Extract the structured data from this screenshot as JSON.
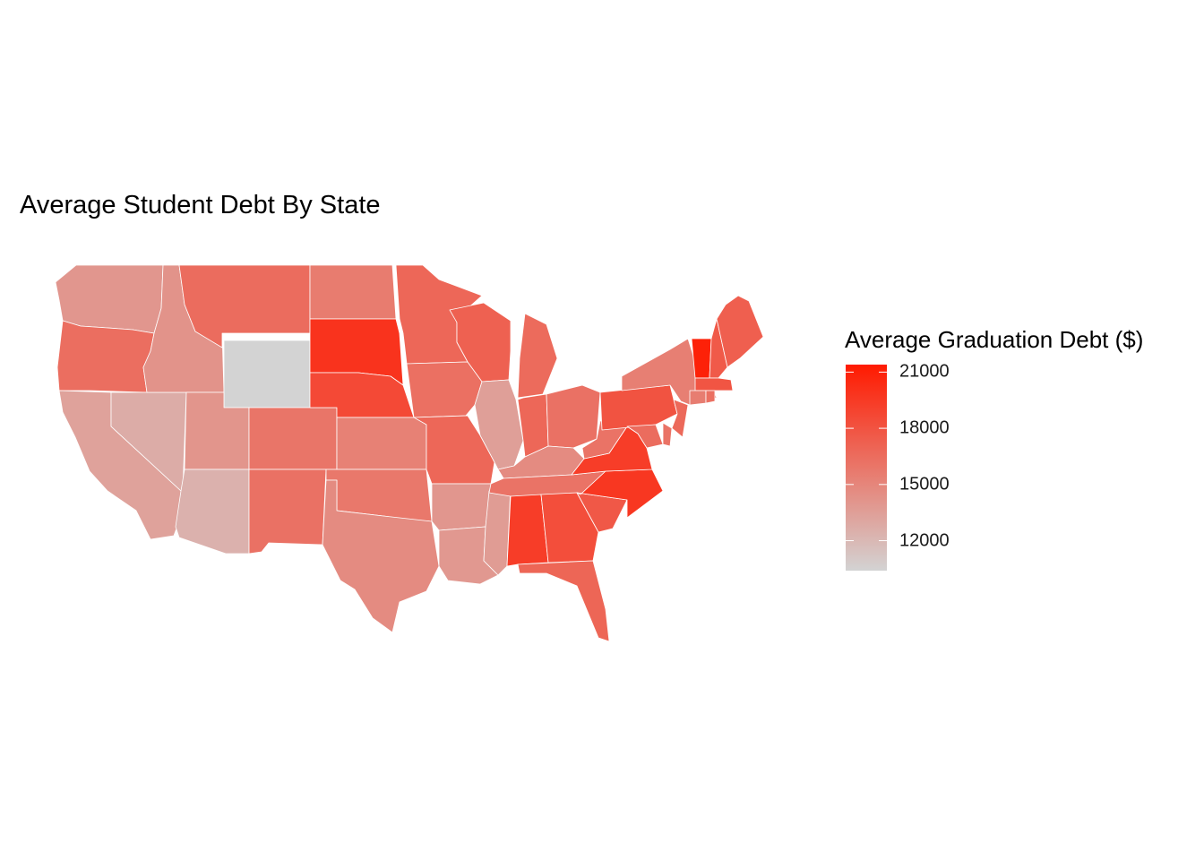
{
  "title": "Average Student Debt By State",
  "legend": {
    "title": "Average Graduation Debt ($)",
    "ticks": [
      {
        "label": "21000",
        "value": 21000
      },
      {
        "label": "18000",
        "value": 18000
      },
      {
        "label": "15000",
        "value": 15000
      },
      {
        "label": "12000",
        "value": 12000
      }
    ],
    "range": [
      10400,
      21400
    ],
    "low_color": "#d3d3d3",
    "high_color": "#ff1a00"
  },
  "chart_data": {
    "type": "choropleth",
    "value_name": "Average Graduation Debt ($)",
    "missing_color": "#d3d3d3",
    "states": [
      {
        "state": "Washington",
        "value": 14000
      },
      {
        "state": "Oregon",
        "value": 16400
      },
      {
        "state": "California",
        "value": 13300
      },
      {
        "state": "Nevada",
        "value": 12700
      },
      {
        "state": "Idaho",
        "value": 14200
      },
      {
        "state": "Montana",
        "value": 16500
      },
      {
        "state": "Wyoming",
        "value": null
      },
      {
        "state": "Utah",
        "value": 14100
      },
      {
        "state": "Arizona",
        "value": 12400
      },
      {
        "state": "Colorado",
        "value": 16000
      },
      {
        "state": "New Mexico",
        "value": 16200
      },
      {
        "state": "North Dakota",
        "value": 15600
      },
      {
        "state": "South Dakota",
        "value": 19900
      },
      {
        "state": "Nebraska",
        "value": 18600
      },
      {
        "state": "Kansas",
        "value": 15300
      },
      {
        "state": "Oklahoma",
        "value": 15800
      },
      {
        "state": "Texas",
        "value": 14700
      },
      {
        "state": "Minnesota",
        "value": 16800
      },
      {
        "state": "Iowa",
        "value": 16300
      },
      {
        "state": "Missouri",
        "value": 16800
      },
      {
        "state": "Arkansas",
        "value": 14000
      },
      {
        "state": "Louisiana",
        "value": 13900
      },
      {
        "state": "Wisconsin",
        "value": 17200
      },
      {
        "state": "Illinois",
        "value": 13500
      },
      {
        "state": "Mississippi",
        "value": 13700
      },
      {
        "state": "Michigan",
        "value": 16600
      },
      {
        "state": "Indiana",
        "value": 16800
      },
      {
        "state": "Ohio",
        "value": 16200
      },
      {
        "state": "Kentucky",
        "value": 14700
      },
      {
        "state": "Tennessee",
        "value": 16100
      },
      {
        "state": "Alabama",
        "value": 19300
      },
      {
        "state": "Georgia",
        "value": 18300
      },
      {
        "state": "Florida",
        "value": 16900
      },
      {
        "state": "South Carolina",
        "value": 17700
      },
      {
        "state": "North Carolina",
        "value": 19700
      },
      {
        "state": "Virginia",
        "value": 19300
      },
      {
        "state": "West Virginia",
        "value": 16100
      },
      {
        "state": "Pennsylvania",
        "value": 18000
      },
      {
        "state": "New York",
        "value": 15400
      },
      {
        "state": "Maryland",
        "value": 16500
      },
      {
        "state": "Delaware",
        "value": 16100
      },
      {
        "state": "New Jersey",
        "value": 16700
      },
      {
        "state": "Vermont",
        "value": 21000
      },
      {
        "state": "New Hampshire",
        "value": 17600
      },
      {
        "state": "Maine",
        "value": 17300
      },
      {
        "state": "Massachusetts",
        "value": 17900
      },
      {
        "state": "Connecticut",
        "value": 15500
      },
      {
        "state": "Rhode Island",
        "value": 16300
      }
    ]
  }
}
